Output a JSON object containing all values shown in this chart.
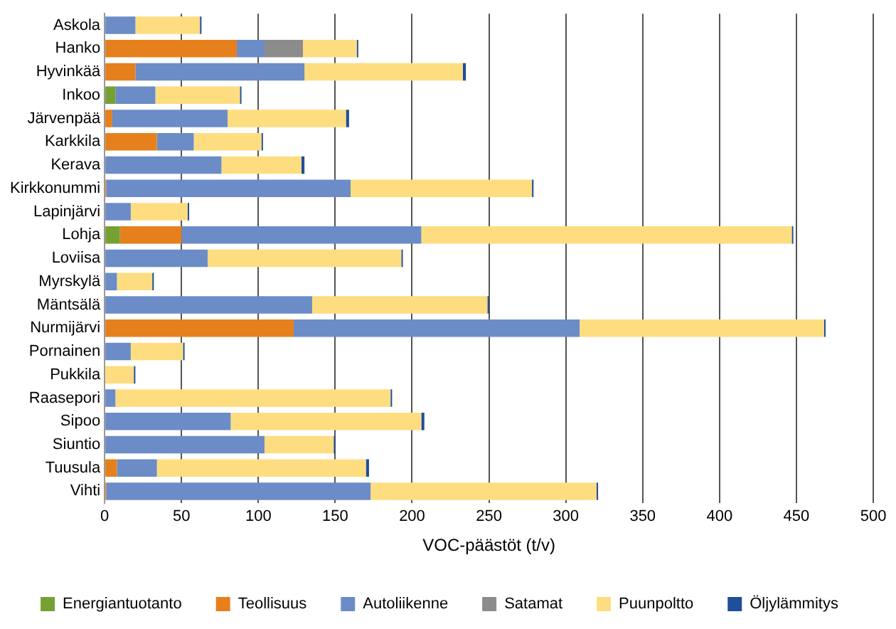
{
  "chart_data": {
    "type": "bar",
    "orientation": "horizontal",
    "stacked": true,
    "xlabel": "VOC-päästöt (t/v)",
    "categories": [
      "Askola",
      "Hanko",
      "Hyvinkää",
      "Inkoo",
      "Järvenpää",
      "Karkkila",
      "Kerava",
      "Kirkkonummi",
      "Lapinjärvi",
      "Lohja",
      "Loviisa",
      "Myrskylä",
      "Mäntsälä",
      "Nurmijärvi",
      "Pornainen",
      "Pukkila",
      "Raasepori",
      "Sipoo",
      "Siuntio",
      "Tuusula",
      "Vihti"
    ],
    "series": [
      {
        "name": "Energiantuotanto",
        "color": "#77a033",
        "values": [
          0,
          0,
          0,
          7,
          0,
          0,
          0,
          0,
          0,
          10,
          0,
          0,
          0,
          0,
          0,
          0,
          0,
          0,
          0,
          0,
          0
        ]
      },
      {
        "name": "Teollisuus",
        "color": "#e5801d",
        "values": [
          0,
          86,
          20,
          0,
          5,
          34,
          0,
          1,
          0,
          40,
          0,
          0,
          0,
          123,
          0,
          0,
          0,
          0,
          0,
          8,
          1
        ]
      },
      {
        "name": "Autoliikenne",
        "color": "#6b8cc7",
        "values": [
          20,
          18,
          110,
          26,
          75,
          24,
          76,
          159,
          17,
          156,
          67,
          8,
          135,
          186,
          17,
          0,
          7,
          82,
          104,
          26,
          172
        ]
      },
      {
        "name": "Satamat",
        "color": "#8c8c8c",
        "values": [
          0,
          25,
          0,
          0,
          0,
          0,
          0,
          0,
          0,
          0,
          0,
          0,
          0,
          0,
          0,
          0,
          0,
          0,
          0,
          0,
          0
        ]
      },
      {
        "name": "Puunpoltto",
        "color": "#fedd80",
        "values": [
          42,
          35,
          103,
          55,
          77,
          44,
          52,
          118,
          37,
          241,
          126,
          23,
          114,
          159,
          34,
          19,
          179,
          124,
          45,
          136,
          147
        ]
      },
      {
        "name": "Öljylämmitys",
        "color": "#1f4e9a",
        "values": [
          1,
          1,
          2,
          1,
          2,
          1,
          2,
          1,
          1,
          1,
          1,
          1,
          1,
          1,
          1,
          1,
          1,
          2,
          1,
          2,
          1
        ]
      }
    ],
    "xlim": [
      0,
      500
    ],
    "xticks": [
      0,
      50,
      100,
      150,
      200,
      250,
      300,
      350,
      400,
      450,
      500
    ],
    "grid": "x",
    "legend": "bottom"
  }
}
